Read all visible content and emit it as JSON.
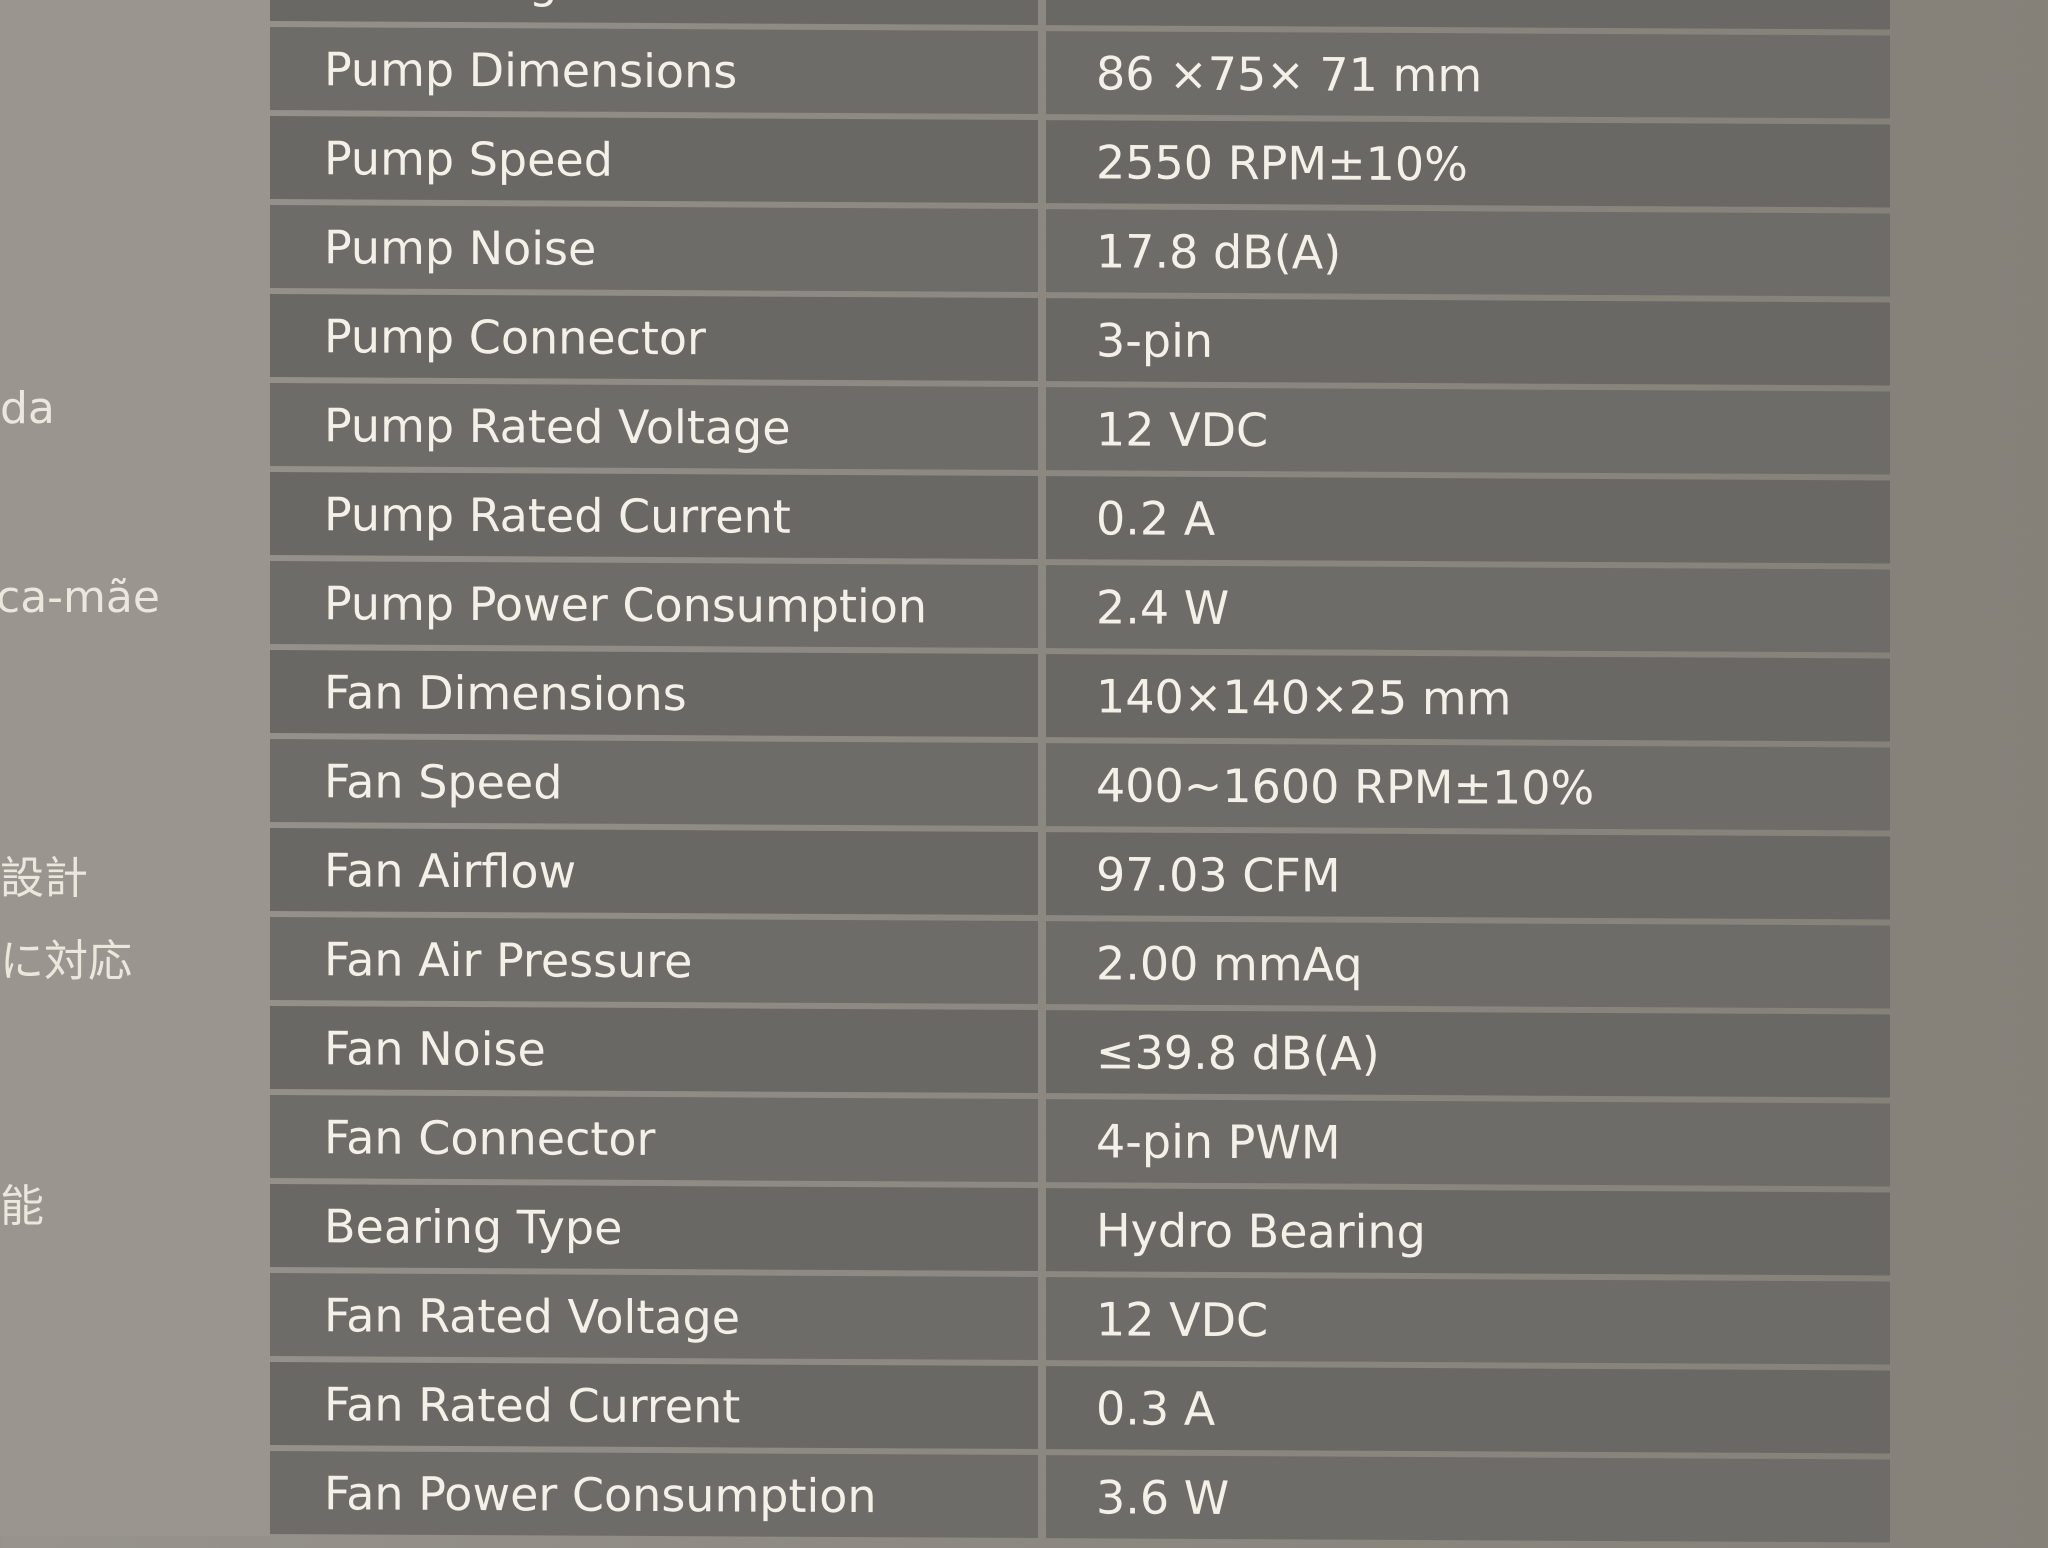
{
  "side_fragments": [
    "da",
    "ca-mãe",
    "設計",
    "に対応",
    "能"
  ],
  "specs": [
    {
      "label": "Tube Length",
      "value": ""
    },
    {
      "label": "Pump Dimensions",
      "value": "86 ×75× 71 mm"
    },
    {
      "label": "Pump Speed",
      "value": "2550 RPM±10%"
    },
    {
      "label": "Pump Noise",
      "value": "17.8 dB(A)"
    },
    {
      "label": "Pump Connector",
      "value": "3-pin"
    },
    {
      "label": "Pump Rated Voltage",
      "value": "12 VDC"
    },
    {
      "label": "Pump Rated Current",
      "value": "0.2 A"
    },
    {
      "label": "Pump Power Consumption",
      "value": "2.4 W"
    },
    {
      "label": "Fan Dimensions",
      "value": "140×140×25 mm"
    },
    {
      "label": "Fan Speed",
      "value": "400~1600 RPM±10%"
    },
    {
      "label": "Fan Airflow",
      "value": "97.03 CFM"
    },
    {
      "label": "Fan Air Pressure",
      "value": "2.00 mmAq"
    },
    {
      "label": "Fan Noise",
      "value": "≤39.8 dB(A)"
    },
    {
      "label": "Fan Connector",
      "value": "4-pin PWM"
    },
    {
      "label": "Bearing Type",
      "value": "Hydro Bearing"
    },
    {
      "label": "Fan Rated Voltage",
      "value": "12 VDC"
    },
    {
      "label": "Fan Rated Current",
      "value": "0.3 A"
    },
    {
      "label": "Fan Power Consumption",
      "value": "3.6 W"
    }
  ]
}
